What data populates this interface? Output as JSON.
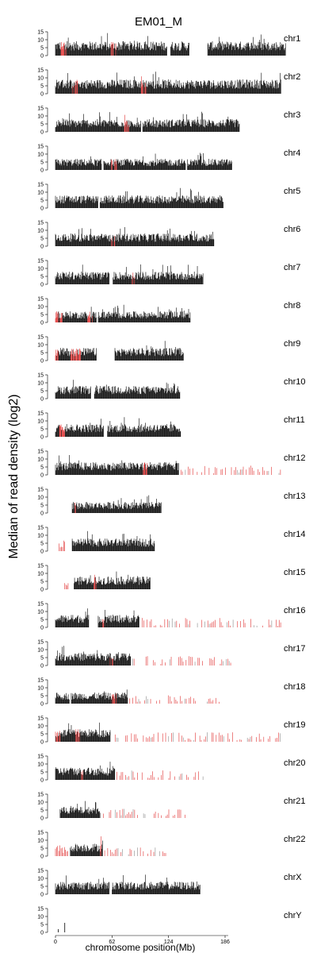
{
  "chart_data": {
    "type": "bar",
    "title": "EM01_M",
    "xlabel": "chromosome position(Mb)",
    "ylabel": "Median of read density (log2)",
    "x_ticks": [
      0,
      62,
      124,
      186
    ],
    "y_ticks": [
      0,
      5,
      10,
      15
    ],
    "ylim": [
      0,
      15
    ],
    "xlim": [
      0,
      186
    ],
    "colors": {
      "normal": "#000000",
      "highlight": "#e03030"
    },
    "panels": [
      {
        "name": "chr1",
        "segments": [
          [
            0,
            120
          ],
          [
            124,
            144
          ],
          [
            164,
            248
          ]
        ],
        "level": 9,
        "red_regions": [
          [
            5,
            12
          ],
          [
            58,
            65
          ],
          [
            150,
            162
          ]
        ],
        "sparse_red_end": 0
      },
      {
        "name": "chr2",
        "segments": [
          [
            0,
            243
          ]
        ],
        "level": 9,
        "red_regions": [
          [
            18,
            24
          ],
          [
            92,
            98
          ]
        ],
        "sparse_red_end": 0
      },
      {
        "name": "chr3",
        "segments": [
          [
            0,
            92
          ],
          [
            94,
            198
          ]
        ],
        "level": 8,
        "red_regions": [
          [
            74,
            80
          ]
        ],
        "sparse_red_end": 0
      },
      {
        "name": "chr4",
        "segments": [
          [
            0,
            50
          ],
          [
            52,
            140
          ],
          [
            142,
            190
          ]
        ],
        "level": 7,
        "red_regions": [
          [
            60,
            66
          ]
        ],
        "sparse_red_end": 0
      },
      {
        "name": "chr5",
        "segments": [
          [
            0,
            46
          ],
          [
            48,
            181
          ]
        ],
        "level": 8,
        "red_regions": [],
        "sparse_red_end": 0
      },
      {
        "name": "chr6",
        "segments": [
          [
            0,
            171
          ]
        ],
        "level": 8,
        "red_regions": [
          [
            60,
            64
          ]
        ],
        "sparse_red_end": 0
      },
      {
        "name": "chr7",
        "segments": [
          [
            0,
            58
          ],
          [
            62,
            159
          ]
        ],
        "level": 8,
        "red_regions": [
          [
            82,
            86
          ]
        ],
        "sparse_red_end": 0
      },
      {
        "name": "chr8",
        "segments": [
          [
            0,
            44
          ],
          [
            46,
            145
          ]
        ],
        "level": 7,
        "red_regions": [
          [
            0,
            8
          ],
          [
            34,
            40
          ]
        ],
        "sparse_red_end": 0
      },
      {
        "name": "chr9",
        "segments": [
          [
            0,
            44
          ],
          [
            64,
            138
          ]
        ],
        "level": 8,
        "red_regions": [
          [
            0,
            6
          ],
          [
            16,
            28
          ]
        ],
        "sparse_red_end": 0
      },
      {
        "name": "chr10",
        "segments": [
          [
            0,
            38
          ],
          [
            42,
            134
          ]
        ],
        "level": 8,
        "red_regions": [],
        "sparse_red_end": 0
      },
      {
        "name": "chr11",
        "segments": [
          [
            0,
            52
          ],
          [
            56,
            135
          ]
        ],
        "level": 8,
        "red_regions": [
          [
            4,
            10
          ]
        ],
        "sparse_red_end": 0
      },
      {
        "name": "chr12",
        "segments": [
          [
            0,
            133
          ]
        ],
        "level": 8,
        "red_regions": [
          [
            94,
            100
          ]
        ],
        "sparse_red_end": 243
      },
      {
        "name": "chr13",
        "segments": [
          [
            18,
            114
          ]
        ],
        "level": 7,
        "red_regions": [
          [
            18,
            22
          ]
        ],
        "sparse_red_end": 0
      },
      {
        "name": "chr14",
        "segments": [
          [
            18,
            107
          ]
        ],
        "level": 8,
        "red_regions": [
          [
            4,
            10
          ]
        ],
        "sparse_red_end": 0
      },
      {
        "name": "chr15",
        "segments": [
          [
            20,
            102
          ]
        ],
        "level": 8,
        "red_regions": [
          [
            10,
            14
          ],
          [
            40,
            44
          ]
        ],
        "sparse_red_end": 0
      },
      {
        "name": "chr16",
        "segments": [
          [
            0,
            36
          ],
          [
            46,
            90
          ]
        ],
        "level": 8,
        "red_regions": [
          [
            50,
            54
          ]
        ],
        "sparse_red_end": 243
      },
      {
        "name": "chr17",
        "segments": [
          [
            0,
            81
          ]
        ],
        "level": 8,
        "red_regions": [
          [
            58,
            62
          ]
        ],
        "sparse_red_end": 190
      },
      {
        "name": "chr18",
        "segments": [
          [
            0,
            15
          ],
          [
            17,
            78
          ]
        ],
        "level": 7,
        "red_regions": [
          [
            60,
            66
          ]
        ],
        "sparse_red_end": 178
      },
      {
        "name": "chr19",
        "segments": [
          [
            0,
            59
          ]
        ],
        "level": 8,
        "red_regions": [
          [
            0,
            6
          ],
          [
            22,
            26
          ]
        ],
        "sparse_red_end": 243
      },
      {
        "name": "chr20",
        "segments": [
          [
            0,
            64
          ]
        ],
        "level": 8,
        "red_regions": [
          [
            26,
            30
          ]
        ],
        "sparse_red_end": 160
      },
      {
        "name": "chr21",
        "segments": [
          [
            5,
            48
          ]
        ],
        "level": 7,
        "red_regions": [],
        "sparse_red_end": 145
      },
      {
        "name": "chr22",
        "segments": [
          [
            16,
            51
          ]
        ],
        "level": 8,
        "red_regions": [
          [
            0,
            14
          ],
          [
            48,
            51
          ]
        ],
        "sparse_red_end": 120
      },
      {
        "name": "chrX",
        "segments": [
          [
            0,
            58
          ],
          [
            61,
            156
          ]
        ],
        "level": 8,
        "red_regions": [],
        "sparse_red_end": 0
      },
      {
        "name": "chrY",
        "segments": [],
        "level": 0,
        "red_regions": [],
        "sparse_red_end": 0,
        "isolated_bars": [
          [
            3,
            2
          ],
          [
            10,
            6
          ]
        ]
      }
    ]
  }
}
